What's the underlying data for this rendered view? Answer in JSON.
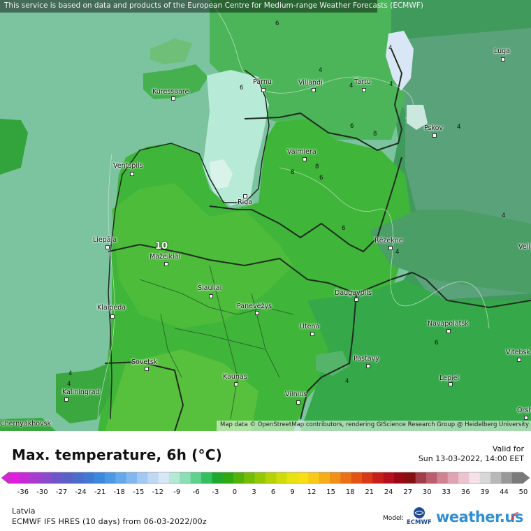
{
  "notice": "This service is based on data and products of the European Centre for Medium-range Weather Forecasts (ECMWF)",
  "attribution": "Map data © OpenStreetMap contributors, rendering GIScience Research Group @ Heidelberg University",
  "map": {
    "max_label": "10",
    "contour_labels": [
      "6",
      "4",
      "4",
      "6",
      "4",
      "4",
      "6",
      "8",
      "8",
      "6",
      "8",
      "6",
      "4",
      "4",
      "4",
      "6",
      "4",
      "4",
      "4"
    ],
    "cities": [
      {
        "name": "Kuressaare"
      },
      {
        "name": "Pärnu"
      },
      {
        "name": "Viljandi"
      },
      {
        "name": "Tartu"
      },
      {
        "name": "Luga"
      },
      {
        "name": "Pskov"
      },
      {
        "name": "Valmiera"
      },
      {
        "name": "Ventspils"
      },
      {
        "name": "Riga"
      },
      {
        "name": "Liepāja"
      },
      {
        "name": "Mažeikiai"
      },
      {
        "name": "Rēzekne"
      },
      {
        "name": "Šiauliai"
      },
      {
        "name": "Panevėžys"
      },
      {
        "name": "Daugavpils"
      },
      {
        "name": "Klaipėda"
      },
      {
        "name": "Utena"
      },
      {
        "name": "Navapolatsk"
      },
      {
        "name": "Sovetsk"
      },
      {
        "name": "Pastavy"
      },
      {
        "name": "Vitebsk"
      },
      {
        "name": "Kaunas"
      },
      {
        "name": "Lepiel"
      },
      {
        "name": "Kaliningrad"
      },
      {
        "name": "Vilnius"
      },
      {
        "name": "Orsha"
      },
      {
        "name": "Velikiye Luki"
      },
      {
        "name": "Chernyakhovsk"
      }
    ]
  },
  "legend": {
    "title": "Max. temperature, 6h (°C)",
    "valid_label": "Valid for",
    "valid_time": "Sun 13-03-2022, 14:00 EET",
    "ticks": [
      "-36",
      "-30",
      "-27",
      "-24",
      "-21",
      "-18",
      "-15",
      "-12",
      "-9",
      "-6",
      "-3",
      "0",
      "3",
      "6",
      "9",
      "12",
      "15",
      "18",
      "21",
      "24",
      "27",
      "30",
      "33",
      "36",
      "39",
      "44",
      "50"
    ],
    "colors": [
      "#e01ee0",
      "#c62ad6",
      "#a93bd0",
      "#8c49cc",
      "#7055c8",
      "#5a61c6",
      "#4a6dcb",
      "#4079d3",
      "#3b88dd",
      "#4a98e4",
      "#64a8ea",
      "#82b8ef",
      "#a1c9f2",
      "#bfd9f5",
      "#d6e8f7",
      "#b4e9d6",
      "#8cdeb7",
      "#5fd18e",
      "#33c15f",
      "#1ea92c",
      "#2eaa10",
      "#52b20a",
      "#73bd06",
      "#95c805",
      "#b4d205",
      "#d0dc0a",
      "#e7e210",
      "#f7df14",
      "#f8c916",
      "#f6ad17",
      "#f28f17",
      "#ec7015",
      "#e35314",
      "#d73816",
      "#c91f1a",
      "#b40f1b",
      "#9b0715",
      "#85100f",
      "#a23c48",
      "#bb5d6c",
      "#d08291",
      "#e0a3b1",
      "#ecc4cf",
      "#f4e2e8",
      "#d8d8d8",
      "#b8b8b8",
      "#989898",
      "#7a7a7a"
    ]
  },
  "footer": {
    "region": "Latvia",
    "model_run": "ECMWF IFS HRES (10 days) from 06-03-2022/00z",
    "model_label": "Model:",
    "model_logo_text": "ECMWF",
    "brand": "weather.us"
  }
}
